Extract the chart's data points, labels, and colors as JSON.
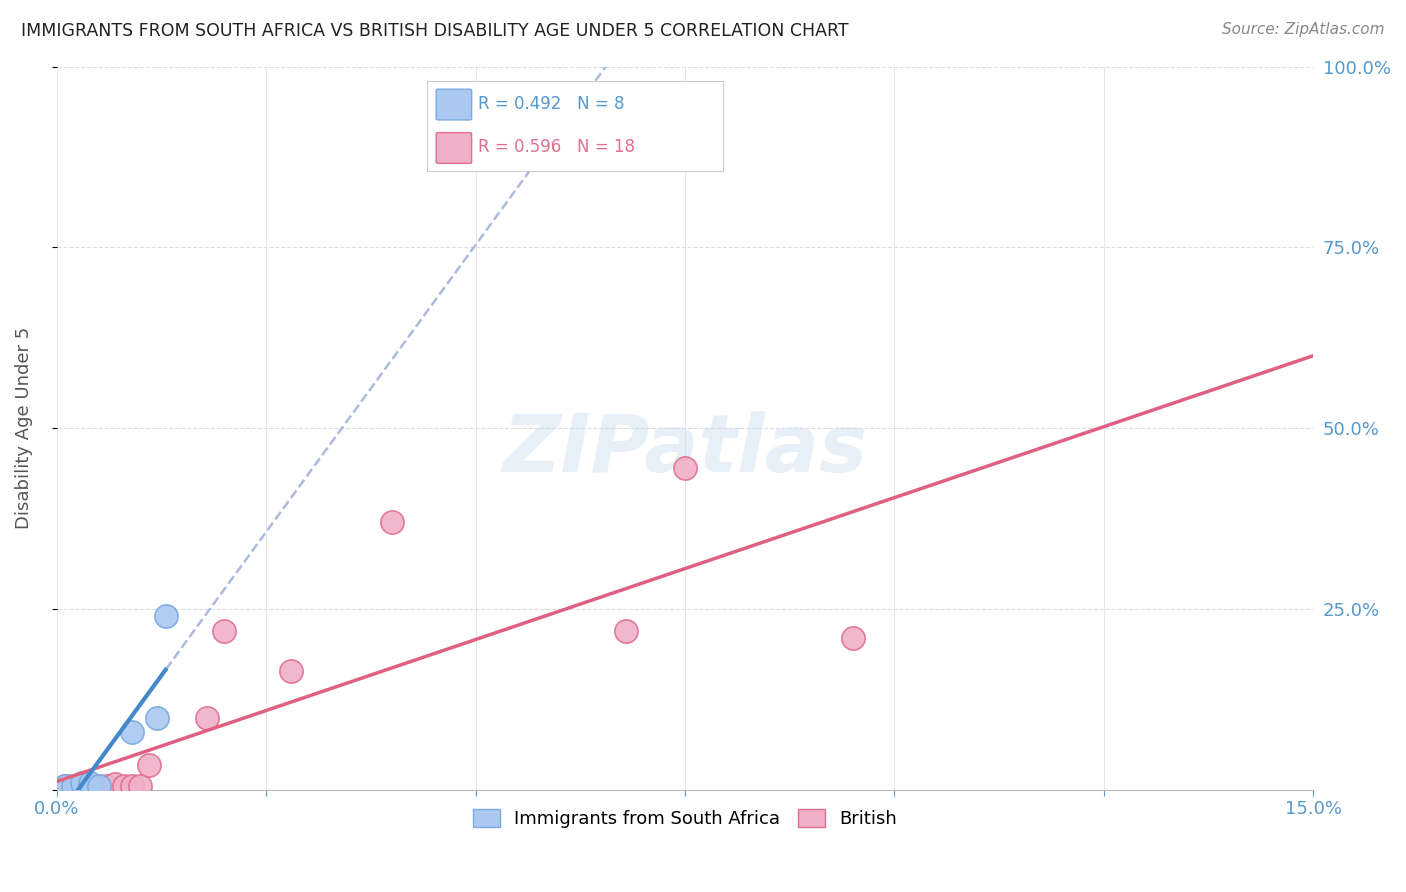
{
  "title": "IMMIGRANTS FROM SOUTH AFRICA VS BRITISH DISABILITY AGE UNDER 5 CORRELATION CHART",
  "source": "Source: ZipAtlas.com",
  "ylabel": "Disability Age Under 5",
  "xlim": [
    0.0,
    0.15
  ],
  "ylim": [
    0.0,
    1.0
  ],
  "ytick_positions": [
    0.0,
    0.25,
    0.5,
    0.75,
    1.0
  ],
  "xtick_positions": [
    0.0,
    0.025,
    0.05,
    0.075,
    0.1,
    0.125,
    0.15
  ],
  "sa_x": [
    0.001,
    0.002,
    0.003,
    0.004,
    0.005,
    0.009,
    0.012,
    0.013
  ],
  "sa_y": [
    0.005,
    0.005,
    0.01,
    0.01,
    0.005,
    0.08,
    0.1,
    0.24
  ],
  "british_x": [
    0.001,
    0.002,
    0.003,
    0.004,
    0.005,
    0.006,
    0.007,
    0.008,
    0.009,
    0.01,
    0.011,
    0.018,
    0.02,
    0.028,
    0.04,
    0.068,
    0.075,
    0.095
  ],
  "british_y": [
    0.005,
    0.005,
    0.005,
    0.005,
    0.005,
    0.005,
    0.008,
    0.005,
    0.005,
    0.005,
    0.035,
    0.1,
    0.22,
    0.165,
    0.37,
    0.22,
    0.445,
    0.21
  ],
  "sa_color": "#aac8f0",
  "sa_edge_color": "#7aaae0",
  "british_color": "#f0b0c8",
  "british_edge_color": "#e07090",
  "sa_line_color": "#4488cc",
  "british_line_color": "#e06080",
  "dashed_line_color": "#aabbdd",
  "sa_R": 0.492,
  "sa_N": 8,
  "british_R": 0.596,
  "british_N": 18,
  "legend_label_sa": "Immigrants from South Africa",
  "legend_label_british": "British",
  "watermark_text": "ZIPatlas",
  "background_color": "#ffffff",
  "grid_color": "#dddddd",
  "title_color": "#222222",
  "axis_label_color": "#5599cc",
  "ylabel_color": "#555555"
}
